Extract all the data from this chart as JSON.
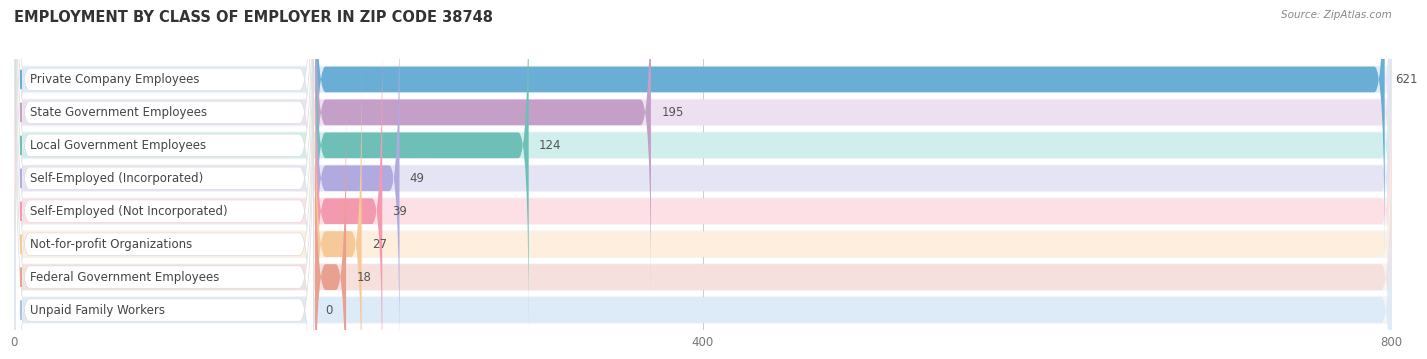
{
  "title": "EMPLOYMENT BY CLASS OF EMPLOYER IN ZIP CODE 38748",
  "source": "Source: ZipAtlas.com",
  "categories": [
    "Private Company Employees",
    "State Government Employees",
    "Local Government Employees",
    "Self-Employed (Incorporated)",
    "Self-Employed (Not Incorporated)",
    "Not-for-profit Organizations",
    "Federal Government Employees",
    "Unpaid Family Workers"
  ],
  "values": [
    621,
    195,
    124,
    49,
    39,
    27,
    18,
    0
  ],
  "bar_colors": [
    "#6aaed6",
    "#c4a0c8",
    "#6dbfb8",
    "#b0aae0",
    "#f49ab0",
    "#f7c898",
    "#e8a090",
    "#a8c4e0"
  ],
  "bar_bg_colors": [
    "#ddeaf7",
    "#ede0f0",
    "#d0eeec",
    "#e4e4f5",
    "#fce0e6",
    "#fdeedd",
    "#f5e0de",
    "#ddeaf7"
  ],
  "dot_colors": [
    "#6aaed6",
    "#c4a0c8",
    "#6dbfb8",
    "#b0aae0",
    "#f49ab0",
    "#f7c898",
    "#e8a090",
    "#a8c4e0"
  ],
  "xlim": [
    0,
    800
  ],
  "xticks": [
    0,
    400,
    800
  ],
  "title_fontsize": 10.5,
  "label_fontsize": 8.5,
  "value_fontsize": 8.5,
  "background_color": "#ffffff",
  "row_bg_color": "#f5f5f5"
}
